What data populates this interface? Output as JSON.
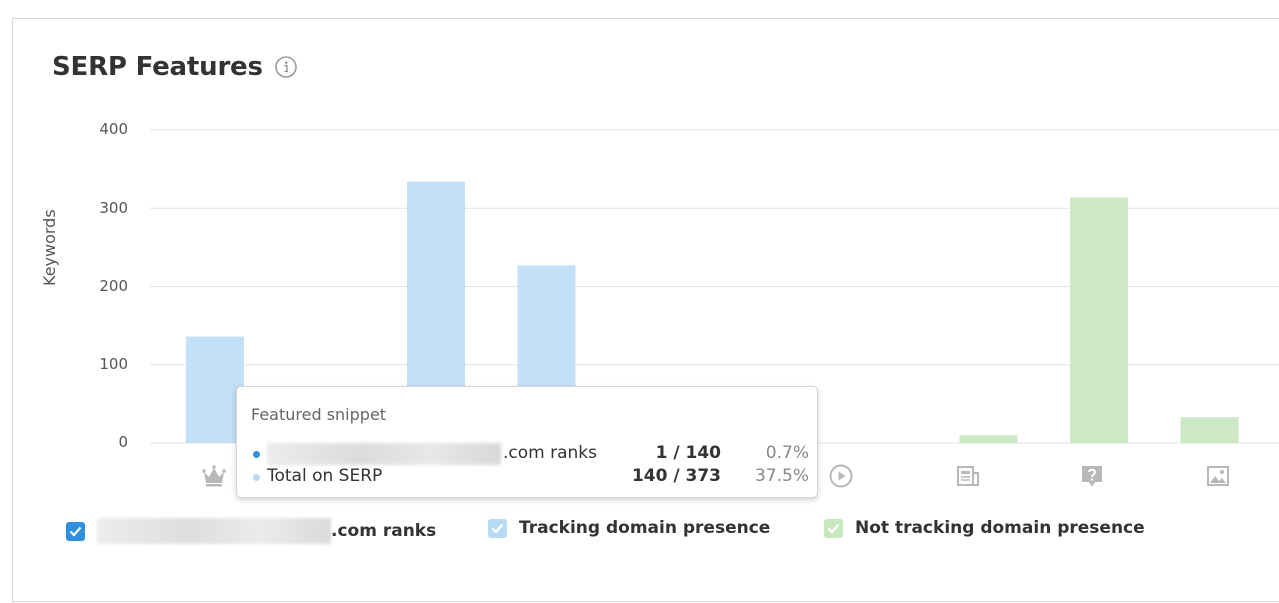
{
  "header": {
    "title": "SERP Features",
    "info_icon": "info-icon"
  },
  "chart_data": {
    "type": "bar",
    "ylabel": "Keywords",
    "ylim": [
      0,
      400
    ],
    "yticks": [
      "0",
      "100",
      "200",
      "300",
      "400"
    ],
    "grid": true,
    "categories": [
      "crown-icon",
      "star-icon",
      "snippet-icon",
      "list-icon",
      "local-pack-icon",
      "people-icon",
      "video-icon",
      "news-icon",
      "question-icon",
      "image-icon"
    ],
    "series": [
      {
        "name": "Tracking domain presence",
        "color": "#c4e0f6",
        "values": [
          136,
          0,
          334,
          227,
          0,
          0,
          0,
          0,
          0,
          0
        ]
      },
      {
        "name": "Not tracking domain presence",
        "color": "#cde8c5",
        "values": [
          0,
          0,
          0,
          0,
          0,
          0,
          0,
          10,
          314,
          33
        ]
      }
    ]
  },
  "tooltip": {
    "title": "Featured snippet",
    "rows": [
      {
        "label": ".com ranks",
        "ratio": "1 / 140",
        "pct": "0.7%",
        "dot_color": "#2f8fe0"
      },
      {
        "label": "Total on SERP",
        "ratio": "140 / 373",
        "pct": "37.5%",
        "dot_color": "#b7dbf4"
      }
    ]
  },
  "legend": [
    {
      "label": ".com ranks",
      "color": "#2f8fe0",
      "checked": true
    },
    {
      "label": "Tracking domain presence",
      "color": "#b7dbf4",
      "checked": true
    },
    {
      "label": "Not tracking domain presence",
      "color": "#c6e8bd",
      "checked": true
    }
  ],
  "colors": {
    "grid": "#e3e3e3",
    "icon": "#b8b8b8"
  }
}
